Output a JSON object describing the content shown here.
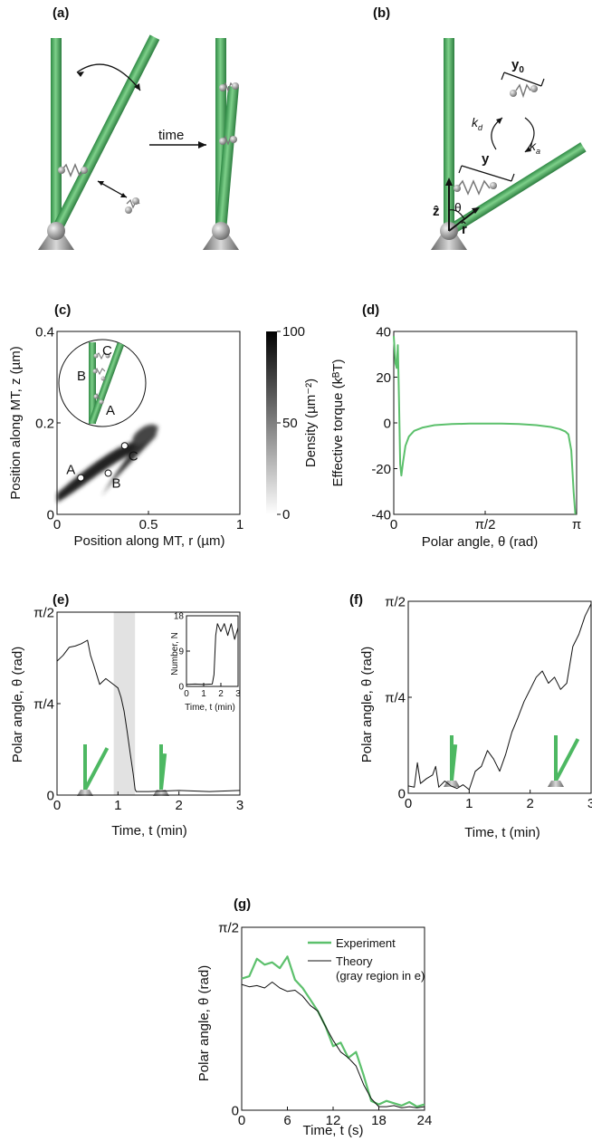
{
  "panels": {
    "a": {
      "label": "(a)",
      "arrow_label": "time"
    },
    "b": {
      "label": "(b)",
      "y0": "y",
      "y0_sub": "0",
      "kd": "k",
      "kd_sub": "d",
      "ka": "k",
      "ka_sub": "a",
      "y": "y",
      "z": "ẑ",
      "r": "r̂",
      "theta": "θ"
    },
    "c": {
      "label": "(c)",
      "xlabel": "Position along MT, r (µm)",
      "ylabel": "Position along MT, z (µm)",
      "colorbar_label": "Density (µm⁻²)",
      "points": [
        "A",
        "B",
        "C"
      ],
      "inset_points": [
        "C",
        "B",
        "A"
      ]
    },
    "d": {
      "label": "(d)",
      "xlabel": "Polar angle, θ (rad)",
      "ylabel": "Effective torque (kᴮT)"
    },
    "e": {
      "label": "(e)",
      "xlabel": "Time, t (min)",
      "ylabel": "Polar angle, θ (rad)",
      "inset_xlabel": "Time, t (min)",
      "inset_ylabel": "Number, N"
    },
    "f": {
      "label": "(f)",
      "xlabel": "Time, t (min)",
      "ylabel": "Polar angle, θ (rad)"
    },
    "g": {
      "label": "(g)",
      "xlabel": "Time, t (s)",
      "ylabel": "Polar angle, θ (rad)"
    }
  },
  "colors": {
    "mt_green": "#4db862",
    "curve_green": "#5cc06c",
    "gray_region": "#e2e2e2"
  },
  "chart_data": [
    {
      "id": "c",
      "type": "heatmap",
      "xlim": [
        0,
        1
      ],
      "ylim": [
        0,
        0.4
      ],
      "xticks": [
        "0",
        "0.5",
        "1"
      ],
      "yticks": [
        "0",
        "0.2",
        "0.4"
      ],
      "colorbar": {
        "ticks": [
          "0",
          "50",
          "100"
        ],
        "range": [
          0,
          100
        ]
      },
      "points": [
        {
          "name": "A",
          "x": 0.13,
          "y": 0.08
        },
        {
          "name": "B",
          "x": 0.28,
          "y": 0.09
        },
        {
          "name": "C",
          "x": 0.37,
          "y": 0.15
        }
      ]
    },
    {
      "id": "d",
      "type": "line",
      "xlim": [
        0,
        3.1416
      ],
      "ylim": [
        -40,
        40
      ],
      "xticks": [
        "0",
        "π/2",
        "π"
      ],
      "yticks": [
        "-40",
        "-20",
        "0",
        "20",
        "40"
      ],
      "series": [
        {
          "x": [
            0.0,
            0.03,
            0.05,
            0.07,
            0.09,
            0.11,
            0.13,
            0.16,
            0.2,
            0.26,
            0.35,
            0.5,
            0.7,
            1.0,
            1.3,
            1.57,
            1.85,
            2.15,
            2.45,
            2.7,
            2.85,
            2.95,
            3.0,
            3.05,
            3.09,
            3.12
          ],
          "y": [
            38,
            26,
            24,
            34,
            10,
            -18,
            -23,
            -17,
            -10,
            -6,
            -3.5,
            -2,
            -1,
            -0.5,
            -0.3,
            -0.3,
            -0.3,
            -0.5,
            -1,
            -1.8,
            -2.7,
            -3.8,
            -5,
            -12,
            -30,
            -40
          ]
        }
      ]
    },
    {
      "id": "e",
      "type": "line",
      "xlim": [
        0,
        3
      ],
      "ylim": [
        0,
        1.5708
      ],
      "xticks": [
        "0",
        "1",
        "2",
        "3"
      ],
      "yticks": [
        "0",
        "π/4",
        "π/2"
      ],
      "shaded_x": [
        0.93,
        1.28
      ],
      "series": [
        {
          "x": [
            0,
            0.1,
            0.2,
            0.3,
            0.4,
            0.5,
            0.55,
            0.6,
            0.7,
            0.8,
            0.9,
            1.0,
            1.05,
            1.1,
            1.15,
            1.2,
            1.25,
            1.28,
            1.3,
            1.5,
            2.0,
            2.5,
            3.0
          ],
          "y": [
            1.15,
            1.2,
            1.27,
            1.28,
            1.3,
            1.33,
            1.2,
            1.12,
            0.95,
            1.0,
            0.96,
            0.92,
            0.84,
            0.72,
            0.55,
            0.36,
            0.18,
            0.05,
            0.03,
            0.03,
            0.04,
            0.03,
            0.04
          ]
        }
      ],
      "inset": {
        "xlim": [
          0,
          3
        ],
        "ylim": [
          0,
          18
        ],
        "xticks": [
          "0",
          "1",
          "2",
          "3"
        ],
        "yticks": [
          "0",
          "9",
          "18"
        ],
        "x": [
          0,
          0.5,
          1.0,
          1.5,
          1.6,
          1.7,
          1.8,
          2.0,
          2.2,
          2.4,
          2.6,
          2.8,
          3.0
        ],
        "y": [
          0.5,
          0.6,
          0.5,
          0.6,
          3,
          13,
          16,
          14,
          16,
          13,
          16,
          12,
          15
        ]
      }
    },
    {
      "id": "f",
      "type": "line",
      "xlim": [
        0,
        3
      ],
      "ylim": [
        0,
        1.5708
      ],
      "xticks": [
        "0",
        "1",
        "2",
        "3"
      ],
      "yticks": [
        "0",
        "π/4",
        "π/2"
      ],
      "series": [
        {
          "x": [
            0,
            0.1,
            0.15,
            0.2,
            0.3,
            0.4,
            0.45,
            0.5,
            0.6,
            0.7,
            0.8,
            0.9,
            1.0,
            1.1,
            1.2,
            1.3,
            1.4,
            1.5,
            1.6,
            1.7,
            1.8,
            1.9,
            2.0,
            2.1,
            2.2,
            2.3,
            2.4,
            2.5,
            2.6,
            2.7,
            2.8,
            2.9,
            3.0
          ],
          "y": [
            0.06,
            0.05,
            0.25,
            0.08,
            0.12,
            0.15,
            0.22,
            0.05,
            0.1,
            0.06,
            0.04,
            0.07,
            0.03,
            0.18,
            0.22,
            0.35,
            0.28,
            0.18,
            0.32,
            0.5,
            0.62,
            0.75,
            0.85,
            0.95,
            1.0,
            0.9,
            0.95,
            0.85,
            0.9,
            1.2,
            1.3,
            1.45,
            1.55
          ]
        }
      ]
    },
    {
      "id": "g",
      "type": "line",
      "xlim": [
        0,
        24
      ],
      "ylim": [
        0,
        1.5708
      ],
      "xticks": [
        "0",
        "6",
        "12",
        "18",
        "24"
      ],
      "yticks": [
        "0",
        "π/2"
      ],
      "legend": "top-right",
      "series": [
        {
          "name": "Experiment",
          "x": [
            0,
            1,
            2,
            3,
            4,
            5,
            6,
            7,
            8,
            9,
            10,
            11,
            12,
            13,
            14,
            15,
            16,
            17,
            18,
            19,
            20,
            21,
            22,
            23,
            24
          ],
          "y": [
            1.13,
            1.15,
            1.3,
            1.25,
            1.27,
            1.22,
            1.32,
            1.12,
            1.05,
            0.95,
            0.85,
            0.72,
            0.55,
            0.58,
            0.45,
            0.5,
            0.3,
            0.08,
            0.05,
            0.08,
            0.06,
            0.04,
            0.07,
            0.03,
            0.05
          ]
        },
        {
          "name": "Theory (gray region in e)",
          "x": [
            0,
            1,
            2,
            3,
            4,
            5,
            6,
            7,
            8,
            9,
            10,
            11,
            12,
            13,
            14,
            15,
            16,
            17,
            18,
            19,
            20,
            21,
            22,
            23,
            24
          ],
          "y": [
            1.08,
            1.06,
            1.07,
            1.05,
            1.1,
            1.05,
            1.02,
            1.03,
            0.98,
            0.9,
            0.85,
            0.72,
            0.6,
            0.5,
            0.45,
            0.38,
            0.22,
            0.1,
            0.03,
            0.03,
            0.04,
            0.02,
            0.03,
            0.02,
            0.03
          ]
        }
      ]
    }
  ]
}
